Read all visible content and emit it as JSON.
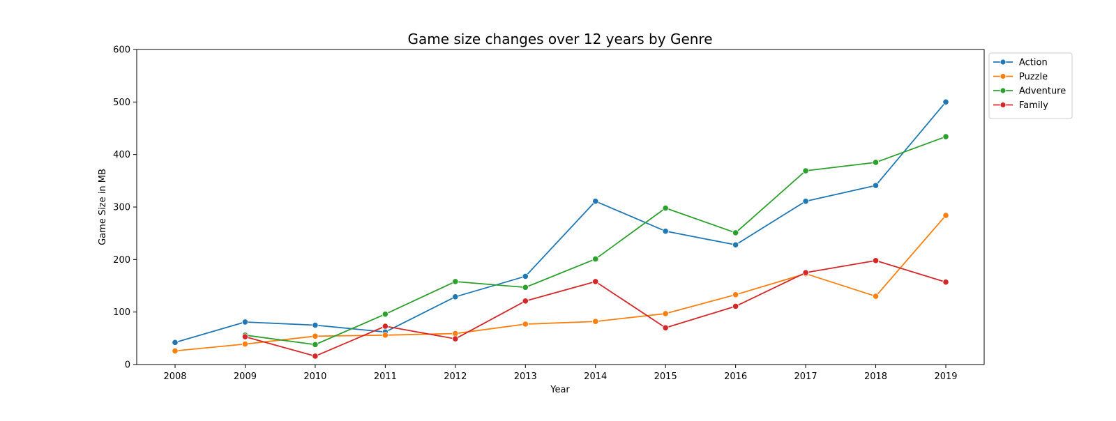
{
  "chart_data": {
    "type": "line",
    "title": "Game size changes over 12 years by Genre",
    "xlabel": "Year",
    "ylabel": "Game Size in MB",
    "x": [
      "2008",
      "2009",
      "2010",
      "2011",
      "2012",
      "2013",
      "2014",
      "2015",
      "2016",
      "2017",
      "2018",
      "2019"
    ],
    "ylim": [
      0,
      600
    ],
    "yticks": [
      0,
      100,
      200,
      300,
      400,
      500,
      600
    ],
    "grid": false,
    "legend_position": "outside-top-right",
    "series": [
      {
        "name": "Action",
        "color": "#1f77b4",
        "values": [
          42,
          81,
          75,
          62,
          129,
          168,
          311,
          254,
          228,
          311,
          341,
          500
        ]
      },
      {
        "name": "Puzzle",
        "color": "#ff7f0e",
        "values": [
          26,
          39,
          54,
          56,
          59,
          77,
          82,
          97,
          133,
          173,
          130,
          284
        ]
      },
      {
        "name": "Adventure",
        "color": "#2ca02c",
        "values": [
          null,
          56,
          38,
          96,
          158,
          147,
          201,
          298,
          251,
          369,
          385,
          434
        ]
      },
      {
        "name": "Family",
        "color": "#d62728",
        "values": [
          null,
          53,
          16,
          73,
          49,
          121,
          158,
          70,
          111,
          175,
          198,
          157
        ]
      }
    ]
  }
}
